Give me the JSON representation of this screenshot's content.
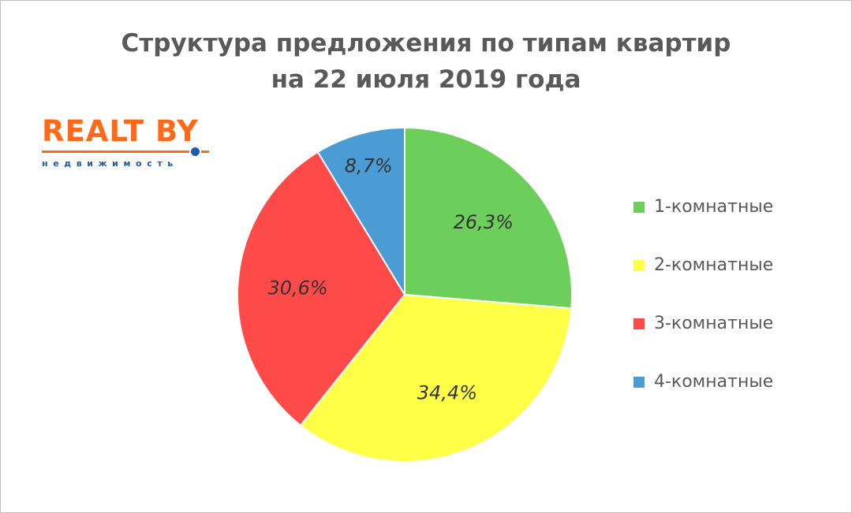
{
  "title_line1": "Структура предложения по типам квартир",
  "title_line2": "на 22 июля 2019 года",
  "logo": {
    "name": "REALT BY",
    "subtitle": "недвижимость"
  },
  "chart_data": {
    "type": "pie",
    "title": "Структура предложения по типам квартир на 22 июля 2019 года",
    "legend_position": "right",
    "slices": [
      {
        "name": "1-комнатные",
        "value": 26.3,
        "label": "26,3%",
        "color": "#6ccf5b"
      },
      {
        "name": "2-комнатные",
        "value": 34.4,
        "label": "34,4%",
        "color": "#ffff47"
      },
      {
        "name": "3-комнатные",
        "value": 30.6,
        "label": "30,6%",
        "color": "#ff4a4a"
      },
      {
        "name": "4-комнатные",
        "value": 8.7,
        "label": "8,7%",
        "color": "#4b9bd4"
      }
    ]
  }
}
